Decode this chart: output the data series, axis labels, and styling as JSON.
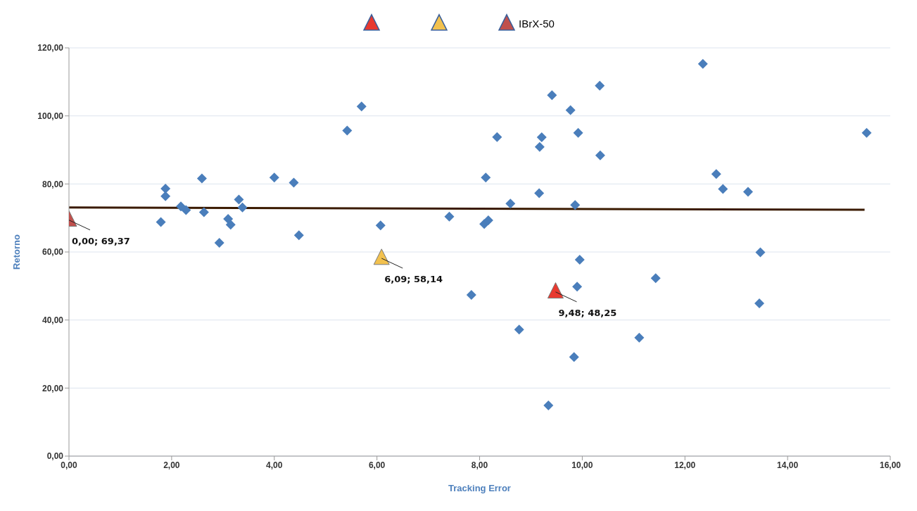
{
  "chart_data": {
    "type": "scatter",
    "xlabel": "Tracking Error",
    "ylabel": "Retorno",
    "xlim": [
      0,
      16
    ],
    "ylim": [
      0,
      120
    ],
    "xticks": [
      {
        "value": 0,
        "label": "0,00"
      },
      {
        "value": 2,
        "label": "2,00"
      },
      {
        "value": 4,
        "label": "4,00"
      },
      {
        "value": 6,
        "label": "6,00"
      },
      {
        "value": 8,
        "label": "8,00"
      },
      {
        "value": 10,
        "label": "10,00"
      },
      {
        "value": 12,
        "label": "12,00"
      },
      {
        "value": 14,
        "label": "14,00"
      },
      {
        "value": 16,
        "label": "16,00"
      }
    ],
    "yticks": [
      {
        "value": 0,
        "label": "0,00"
      },
      {
        "value": 20,
        "label": "20,00"
      },
      {
        "value": 40,
        "label": "40,00"
      },
      {
        "value": 60,
        "label": "60,00"
      },
      {
        "value": 80,
        "label": "80,00"
      },
      {
        "value": 100,
        "label": "100,00"
      },
      {
        "value": 120,
        "label": "120,00"
      }
    ],
    "grid": "y",
    "legend": "top",
    "series": [
      {
        "marker": "diamond",
        "color": "#4a7ebb",
        "x": [
          1.88,
          1.88,
          1.79,
          2.59,
          2.18,
          2.28,
          2.63,
          2.93,
          3.1,
          3.15,
          3.31,
          3.38,
          4.0,
          4.38,
          4.48,
          5.42,
          5.7,
          6.07,
          7.41,
          7.84,
          8.12,
          8.09,
          8.17,
          8.34,
          8.6,
          8.77,
          9.16,
          9.21,
          9.17,
          9.41,
          9.77,
          9.92,
          9.86,
          9.95,
          9.9,
          9.84,
          9.34,
          10.34,
          10.35,
          12.35,
          15.54,
          12.61,
          12.74,
          13.23,
          13.47,
          11.43,
          13.45,
          11.11
        ],
        "values": [
          78.6,
          76.4,
          68.8,
          81.6,
          73.4,
          72.3,
          71.7,
          62.7,
          69.7,
          68.0,
          75.4,
          73.1,
          81.9,
          80.4,
          64.9,
          95.7,
          102.8,
          67.8,
          70.4,
          47.4,
          81.9,
          68.2,
          69.3,
          93.8,
          74.2,
          37.2,
          77.3,
          93.7,
          90.9,
          106.1,
          101.7,
          95.0,
          73.8,
          57.7,
          49.8,
          29.1,
          14.9,
          108.9,
          88.4,
          115.3,
          95.0,
          82.9,
          78.5,
          77.7,
          59.9,
          52.3,
          44.9,
          34.8
        ]
      },
      {
        "type": "line",
        "marker": "none",
        "color": "#3a1a00",
        "x": [
          0,
          15.5
        ],
        "values": [
          73.1,
          72.4
        ]
      },
      {
        "marker": "triangle",
        "color": "#e8392f",
        "x": [
          9.48
        ],
        "values": [
          48.25
        ]
      },
      {
        "marker": "triangle",
        "color": "#f2c14e",
        "x": [
          6.09
        ],
        "values": [
          58.14
        ]
      },
      {
        "marker": "triangle",
        "name": "IBrX-50",
        "color": "#c0504d",
        "x": [
          0
        ],
        "values": [
          69.37
        ]
      }
    ],
    "annotations": [
      {
        "text": "0,00; 69,37",
        "x": 0,
        "y": 69.37
      },
      {
        "text": "6,09; 58,14",
        "x": 6.09,
        "y": 58.14
      },
      {
        "text": "9,48; 48,25",
        "x": 9.48,
        "y": 48.25
      }
    ]
  }
}
